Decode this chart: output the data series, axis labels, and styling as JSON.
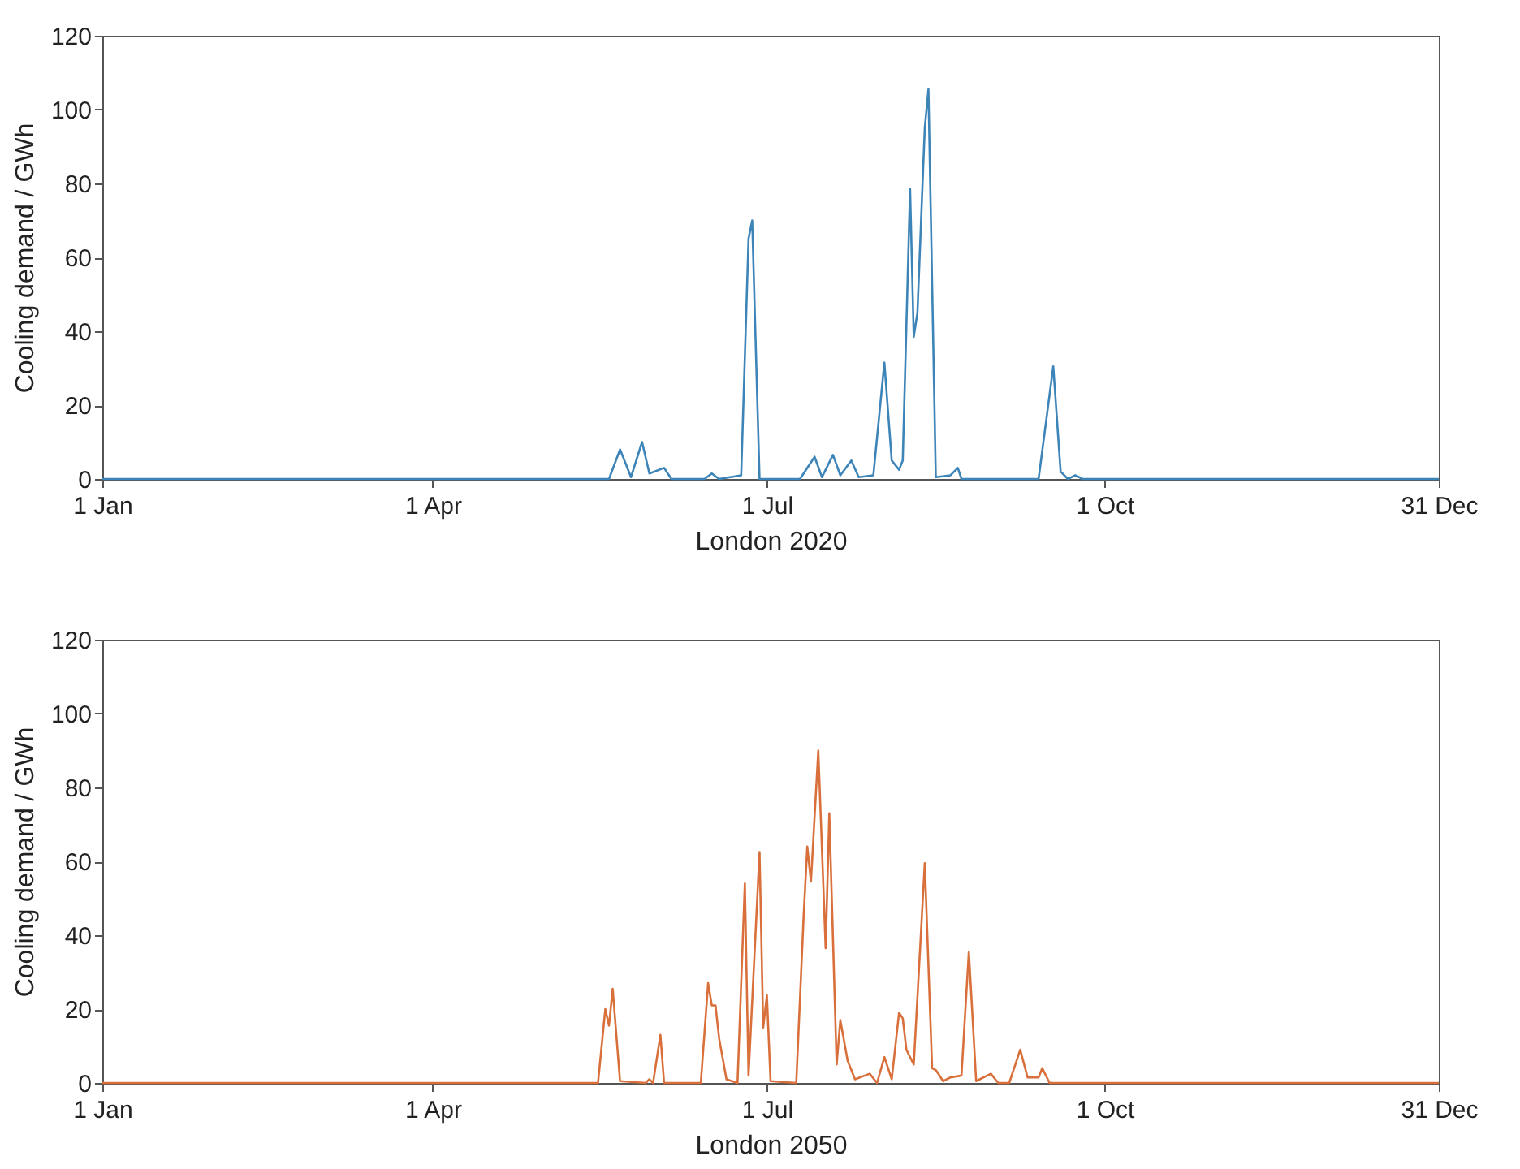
{
  "chart_data": [
    {
      "type": "line",
      "xlabel": "London 2020",
      "ylabel": "Cooling demand / GWh",
      "xlim": [
        "--01-01",
        "--12-31"
      ],
      "xticks": [
        {
          "value": "--01-01",
          "label": "1 Jan"
        },
        {
          "value": "--04-01",
          "label": "1 Apr"
        },
        {
          "value": "--07-01",
          "label": "1 Jul"
        },
        {
          "value": "--10-01",
          "label": "1 Oct"
        },
        {
          "value": "--12-31",
          "label": "31 Dec"
        }
      ],
      "ylim": [
        0,
        120
      ],
      "yticks": [
        0,
        20,
        40,
        60,
        80,
        100,
        120
      ],
      "grid": false,
      "x": [
        "--01-01",
        "--05-19",
        "--05-22",
        "--05-25",
        "--05-28",
        "--05-30",
        "--06-03",
        "--06-05",
        "--06-14",
        "--06-16",
        "--06-18",
        "--06-24",
        "--06-26",
        "--06-27",
        "--06-29",
        "--07-10",
        "--07-14",
        "--07-16",
        "--07-19",
        "--07-21",
        "--07-24",
        "--07-26",
        "--07-30",
        "--08-02",
        "--08-04",
        "--08-06",
        "--08-07",
        "--08-09",
        "--08-10",
        "--08-11",
        "--08-13",
        "--08-14",
        "--08-16",
        "--08-20",
        "--08-22",
        "--08-23",
        "--09-13",
        "--09-17",
        "--09-19",
        "--09-21",
        "--09-23",
        "--09-25",
        "--12-31"
      ],
      "series": [
        {
          "color": "#3d84b8",
          "values": [
            0,
            0,
            8,
            0.5,
            10,
            1.5,
            3,
            0,
            0,
            1.5,
            0,
            1,
            65,
            70,
            0,
            0,
            6,
            0.5,
            6.5,
            1,
            5,
            0.5,
            1,
            31.5,
            5,
            2.5,
            5,
            78.5,
            38.5,
            45,
            95,
            105.5,
            0.5,
            1,
            3,
            0,
            0,
            30.5,
            2,
            0,
            1,
            0,
            0
          ]
        }
      ]
    },
    {
      "type": "line",
      "xlabel": "London 2050",
      "ylabel": "Cooling demand / GWh",
      "xlim": [
        "--01-01",
        "--12-31"
      ],
      "xticks": [
        {
          "value": "--01-01",
          "label": "1 Jan"
        },
        {
          "value": "--04-01",
          "label": "1 Apr"
        },
        {
          "value": "--07-01",
          "label": "1 Jul"
        },
        {
          "value": "--10-01",
          "label": "1 Oct"
        },
        {
          "value": "--12-31",
          "label": "31 Dec"
        }
      ],
      "ylim": [
        0,
        120
      ],
      "yticks": [
        0,
        20,
        40,
        60,
        80,
        100,
        120
      ],
      "grid": false,
      "x": [
        "--01-01",
        "--05-16",
        "--05-18",
        "--05-19",
        "--05-20",
        "--05-22",
        "--05-29",
        "--05-30",
        "--05-31",
        "--06-02",
        "--06-03",
        "--06-13",
        "--06-15",
        "--06-16",
        "--06-17",
        "--06-18",
        "--06-20",
        "--06-23",
        "--06-25",
        "--06-26",
        "--06-29",
        "--06-30",
        "--07-01",
        "--07-02",
        "--07-09",
        "--07-11",
        "--07-12",
        "--07-13",
        "--07-15",
        "--07-17",
        "--07-18",
        "--07-20",
        "--07-21",
        "--07-23",
        "--07-25",
        "--07-29",
        "--07-31",
        "--08-02",
        "--08-04",
        "--08-06",
        "--08-07",
        "--08-08",
        "--08-10",
        "--08-13",
        "--08-15",
        "--08-16",
        "--08-18",
        "--08-20",
        "--08-23",
        "--08-25",
        "--08-27",
        "--08-31",
        "--09-02",
        "--09-05",
        "--09-08",
        "--09-10",
        "--09-13",
        "--09-14",
        "--09-16",
        "--12-31"
      ],
      "series": [
        {
          "color": "#d9703c",
          "values": [
            0,
            0,
            20,
            15.5,
            25.5,
            0.5,
            0,
            1,
            0,
            13,
            0,
            0,
            27,
            21,
            21,
            12,
            1,
            0,
            54,
            2,
            62.5,
            15,
            23.7,
            0.5,
            0,
            45,
            64,
            54.5,
            90,
            36.5,
            73,
            5,
            17,
            6,
            1,
            2.5,
            0,
            7,
            1,
            19,
            17.5,
            9,
            5,
            59.5,
            4,
            3.5,
            0.5,
            1.5,
            2,
            35.5,
            0.5,
            2.5,
            0,
            0,
            9,
            1.5,
            1.5,
            4,
            0,
            0
          ]
        }
      ]
    }
  ]
}
